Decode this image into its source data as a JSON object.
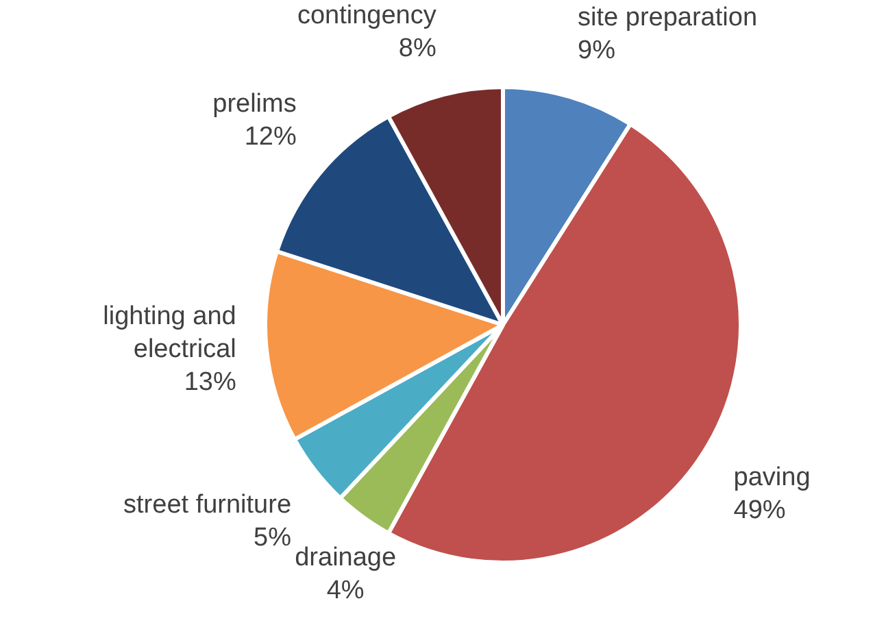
{
  "chart_data": {
    "type": "pie",
    "categories": [
      "site preparation",
      "paving",
      "drainage",
      "street furniture",
      "lighting and electrical",
      "prelims",
      "contingency"
    ],
    "values": [
      9,
      49,
      4,
      5,
      13,
      12,
      8
    ],
    "value_labels": [
      "9%",
      "49%",
      "4%",
      "5%",
      "13%",
      "12%",
      "8%"
    ],
    "colors": [
      "#4f81bd",
      "#c0504d",
      "#9bbb59",
      "#4bacc6",
      "#f79646",
      "#1f497d",
      "#772c2a"
    ],
    "legend": false
  }
}
